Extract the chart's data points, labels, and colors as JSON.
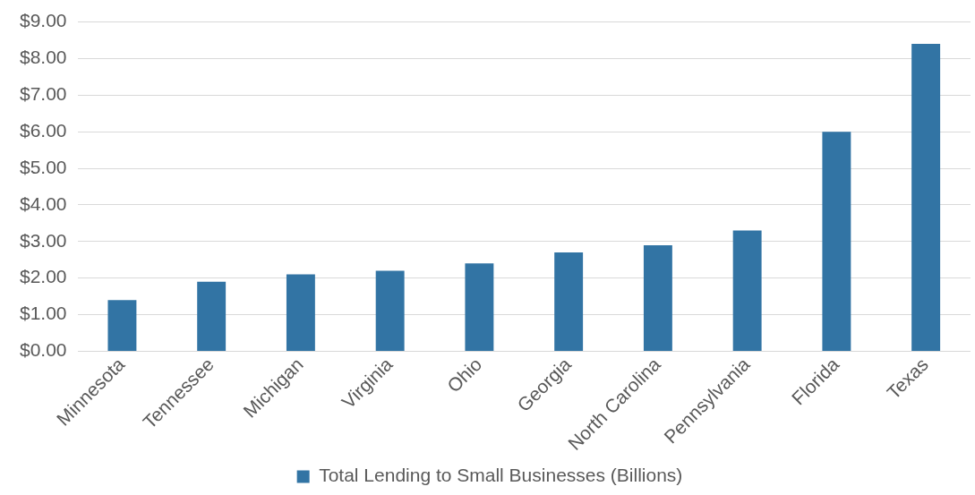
{
  "chart_data": {
    "type": "bar",
    "categories": [
      "Minnesota",
      "Tennessee",
      "Michigan",
      "Virginia",
      "Ohio",
      "Georgia",
      "North Carolina",
      "Pennsylvania",
      "Florida",
      "Texas"
    ],
    "series": [
      {
        "name": "Total Lending to Small Businesses (Billions)",
        "color": "#3274a4",
        "values": [
          1.4,
          1.9,
          2.1,
          2.2,
          2.4,
          2.7,
          2.9,
          3.3,
          6.0,
          8.4
        ]
      }
    ],
    "ylim": [
      0,
      9
    ],
    "yticks": [
      {
        "value": 0,
        "label": "$0.00"
      },
      {
        "value": 1,
        "label": "$1.00"
      },
      {
        "value": 2,
        "label": "$2.00"
      },
      {
        "value": 3,
        "label": "$3.00"
      },
      {
        "value": 4,
        "label": "$4.00"
      },
      {
        "value": 5,
        "label": "$5.00"
      },
      {
        "value": 6,
        "label": "$6.00"
      },
      {
        "value": 7,
        "label": "$7.00"
      },
      {
        "value": 8,
        "label": "$8.00"
      },
      {
        "value": 9,
        "label": "$9.00"
      }
    ],
    "grid": "y",
    "legend": "bottom"
  }
}
